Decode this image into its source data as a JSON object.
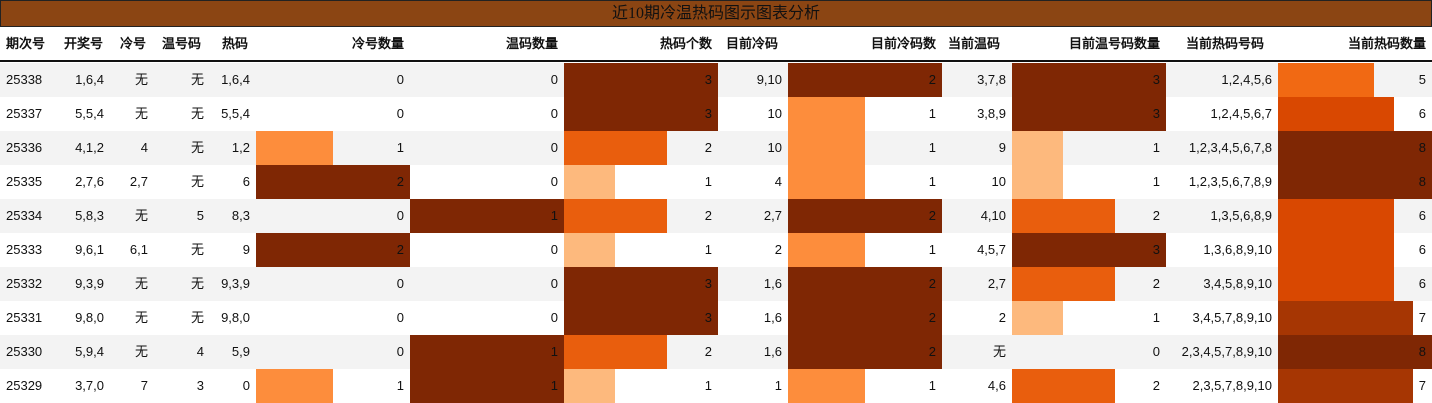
{
  "title": "近10期冷温热码图示图表分析",
  "colors": {
    "title_bg": "#8b4513",
    "bar_scale": {
      "c1": "#fdb97d",
      "c2": "#fd8d3c",
      "c3": "#e95e0d",
      "c4": "#f16913",
      "c5": "#d94801",
      "c6": "#a63603",
      "c7": "#7f2704"
    }
  },
  "columns": [
    {
      "key": "period",
      "label": "期次号"
    },
    {
      "key": "draw",
      "label": "开奖号"
    },
    {
      "key": "cold",
      "label": "冷号"
    },
    {
      "key": "warm",
      "label": "温号码"
    },
    {
      "key": "hot",
      "label": "热码"
    },
    {
      "key": "cold_count",
      "label": "冷号数量"
    },
    {
      "key": "warm_count",
      "label": "温码数量"
    },
    {
      "key": "hot_count",
      "label": "热码个数"
    },
    {
      "key": "cur_cold",
      "label": "目前冷码"
    },
    {
      "key": "cur_cold_count",
      "label": "目前冷码数"
    },
    {
      "key": "cur_warm",
      "label": "当前温码"
    },
    {
      "key": "cur_warm_count",
      "label": "目前温号码数量"
    },
    {
      "key": "cur_hot",
      "label": "当前热码号码"
    },
    {
      "key": "cur_hot_count",
      "label": "当前热码数量"
    }
  ],
  "rows": [
    {
      "period": "25338",
      "draw": "1,6,4",
      "cold": "无",
      "warm": "无",
      "hot": "1,6,4",
      "cold_count": "0",
      "warm_count": "0",
      "hot_count": "3",
      "cur_cold": "9,10",
      "cur_cold_count": "2",
      "cur_warm": "3,7,8",
      "cur_warm_count": "3",
      "cur_hot": "1,2,4,5,6",
      "cur_hot_count": "5"
    },
    {
      "period": "25337",
      "draw": "5,5,4",
      "cold": "无",
      "warm": "无",
      "hot": "5,5,4",
      "cold_count": "0",
      "warm_count": "0",
      "hot_count": "3",
      "cur_cold": "10",
      "cur_cold_count": "1",
      "cur_warm": "3,8,9",
      "cur_warm_count": "3",
      "cur_hot": "1,2,4,5,6,7",
      "cur_hot_count": "6"
    },
    {
      "period": "25336",
      "draw": "4,1,2",
      "cold": "4",
      "warm": "无",
      "hot": "1,2",
      "cold_count": "1",
      "warm_count": "0",
      "hot_count": "2",
      "cur_cold": "10",
      "cur_cold_count": "1",
      "cur_warm": "9",
      "cur_warm_count": "1",
      "cur_hot": "1,2,3,4,5,6,7,8",
      "cur_hot_count": "8"
    },
    {
      "period": "25335",
      "draw": "2,7,6",
      "cold": "2,7",
      "warm": "无",
      "hot": "6",
      "cold_count": "2",
      "warm_count": "0",
      "hot_count": "1",
      "cur_cold": "4",
      "cur_cold_count": "1",
      "cur_warm": "10",
      "cur_warm_count": "1",
      "cur_hot": "1,2,3,5,6,7,8,9",
      "cur_hot_count": "8"
    },
    {
      "period": "25334",
      "draw": "5,8,3",
      "cold": "无",
      "warm": "5",
      "hot": "8,3",
      "cold_count": "0",
      "warm_count": "1",
      "hot_count": "2",
      "cur_cold": "2,7",
      "cur_cold_count": "2",
      "cur_warm": "4,10",
      "cur_warm_count": "2",
      "cur_hot": "1,3,5,6,8,9",
      "cur_hot_count": "6"
    },
    {
      "period": "25333",
      "draw": "9,6,1",
      "cold": "6,1",
      "warm": "无",
      "hot": "9",
      "cold_count": "2",
      "warm_count": "0",
      "hot_count": "1",
      "cur_cold": "2",
      "cur_cold_count": "1",
      "cur_warm": "4,5,7",
      "cur_warm_count": "3",
      "cur_hot": "1,3,6,8,9,10",
      "cur_hot_count": "6"
    },
    {
      "period": "25332",
      "draw": "9,3,9",
      "cold": "无",
      "warm": "无",
      "hot": "9,3,9",
      "cold_count": "0",
      "warm_count": "0",
      "hot_count": "3",
      "cur_cold": "1,6",
      "cur_cold_count": "2",
      "cur_warm": "2,7",
      "cur_warm_count": "2",
      "cur_hot": "3,4,5,8,9,10",
      "cur_hot_count": "6"
    },
    {
      "period": "25331",
      "draw": "9,8,0",
      "cold": "无",
      "warm": "无",
      "hot": "9,8,0",
      "cold_count": "0",
      "warm_count": "0",
      "hot_count": "3",
      "cur_cold": "1,6",
      "cur_cold_count": "2",
      "cur_warm": "2",
      "cur_warm_count": "1",
      "cur_hot": "3,4,5,7,8,9,10",
      "cur_hot_count": "7"
    },
    {
      "period": "25330",
      "draw": "5,9,4",
      "cold": "无",
      "warm": "4",
      "hot": "5,9",
      "cold_count": "0",
      "warm_count": "1",
      "hot_count": "2",
      "cur_cold": "1,6",
      "cur_cold_count": "2",
      "cur_warm": "无",
      "cur_warm_count": "0",
      "cur_hot": "2,3,4,5,7,8,9,10",
      "cur_hot_count": "8"
    },
    {
      "period": "25329",
      "draw": "3,7,0",
      "cold": "7",
      "warm": "3",
      "hot": "0",
      "cold_count": "1",
      "warm_count": "1",
      "hot_count": "1",
      "cur_cold": "1",
      "cur_cold_count": "1",
      "cur_warm": "4,6",
      "cur_warm_count": "2",
      "cur_hot": "2,3,5,7,8,9,10",
      "cur_hot_count": "7"
    }
  ]
}
